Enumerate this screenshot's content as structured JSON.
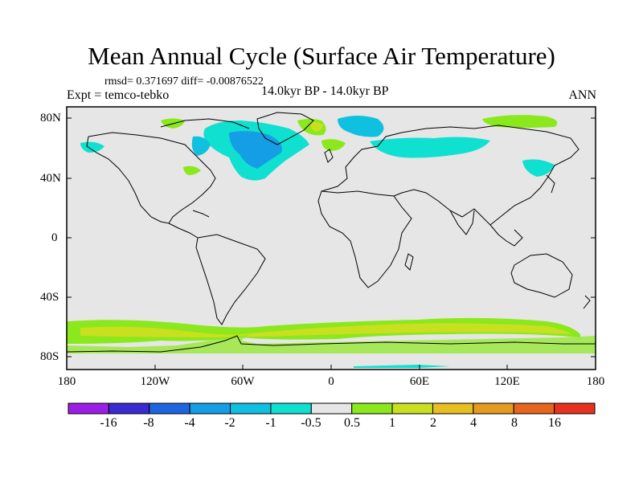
{
  "title": "Mean Annual Cycle (Surface Air Temperature)",
  "stats": "rmsd= 0.371697 diff= -0.00876522",
  "experiment": "Expt = temco-tebko",
  "period": "14.0kyr BP - 14.0kyr BP",
  "season": "ANN",
  "lat_labels": [
    "80N",
    "40N",
    "0",
    "40S",
    "80S"
  ],
  "lon_labels": [
    "180",
    "120W",
    "60W",
    "0",
    "60E",
    "120E",
    "180"
  ],
  "colorbar": {
    "labels": [
      "-16",
      "-8",
      "-4",
      "-2",
      "-1",
      "-0.5",
      "0.5",
      "1",
      "2",
      "4",
      "8",
      "16"
    ],
    "colors": [
      "#9a1ee6",
      "#3a2ad0",
      "#1e66e0",
      "#149ee6",
      "#10c0e0",
      "#10e0d0",
      "#e6e6e6",
      "#8ae81c",
      "#c8e020",
      "#e6c020",
      "#e69a20",
      "#e6661e",
      "#e6321e"
    ]
  },
  "colors": {
    "neutral": "#e6e6e6",
    "cool_1": "#10e0d0",
    "cool_2": "#10c0e0",
    "cool_3": "#149ee6",
    "warm_1": "#8ae81c",
    "warm_2": "#c8e020",
    "warm_3": "#e6c020"
  }
}
